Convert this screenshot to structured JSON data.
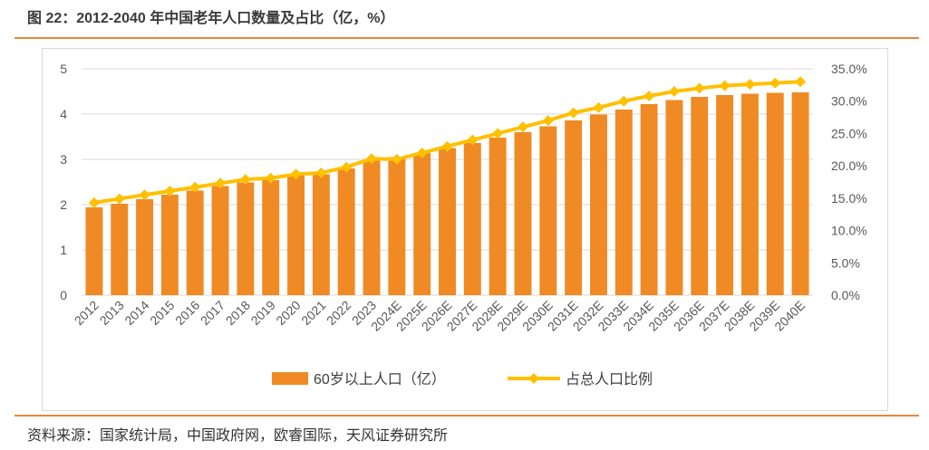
{
  "figure": {
    "title": "图 22：2012-2040 年中国老年人口数量及占比（亿，%）",
    "source": "资料来源：国家统计局，中国政府网，欧睿国际，天风证券研究所"
  },
  "colors": {
    "bar": "#f08a24",
    "line": "#ffc000",
    "grid": "#d9d9d9",
    "rule": "#e8873c"
  },
  "chart_data": {
    "type": "bar+line",
    "categories": [
      "2012",
      "2013",
      "2014",
      "2015",
      "2016",
      "2017",
      "2018",
      "2019",
      "2020",
      "2021",
      "2022",
      "2023",
      "2024E",
      "2025E",
      "2026E",
      "2027E",
      "2028E",
      "2029E",
      "2030E",
      "2031E",
      "2032E",
      "2033E",
      "2034E",
      "2035E",
      "2036E",
      "2037E",
      "2038E",
      "2039E",
      "2040E"
    ],
    "series": [
      {
        "name": "60岁以上人口（亿）",
        "type": "bar",
        "axis": "left",
        "values": [
          1.94,
          2.02,
          2.12,
          2.22,
          2.31,
          2.41,
          2.49,
          2.54,
          2.64,
          2.67,
          2.8,
          2.97,
          3.05,
          3.14,
          3.25,
          3.36,
          3.48,
          3.6,
          3.73,
          3.86,
          3.99,
          4.1,
          4.22,
          4.31,
          4.38,
          4.42,
          4.45,
          4.47,
          4.48
        ]
      },
      {
        "name": "占总人口比例",
        "type": "line",
        "axis": "right",
        "values": [
          14.3,
          14.9,
          15.5,
          16.1,
          16.7,
          17.3,
          17.9,
          18.1,
          18.7,
          18.9,
          19.8,
          21.1,
          21.0,
          22.0,
          23.0,
          24.0,
          25.0,
          26.0,
          27.0,
          28.2,
          29.0,
          30.0,
          30.8,
          31.5,
          32.0,
          32.4,
          32.6,
          32.8,
          33.0
        ]
      }
    ],
    "y_left": {
      "min": 0,
      "max": 5,
      "ticks": [
        "0",
        "1",
        "2",
        "3",
        "4",
        "5"
      ]
    },
    "y_right": {
      "min": 0,
      "max": 35,
      "ticks": [
        "0.0%",
        "5.0%",
        "10.0%",
        "15.0%",
        "20.0%",
        "25.0%",
        "30.0%",
        "35.0%"
      ]
    },
    "grid": true,
    "legend_position": "bottom"
  }
}
